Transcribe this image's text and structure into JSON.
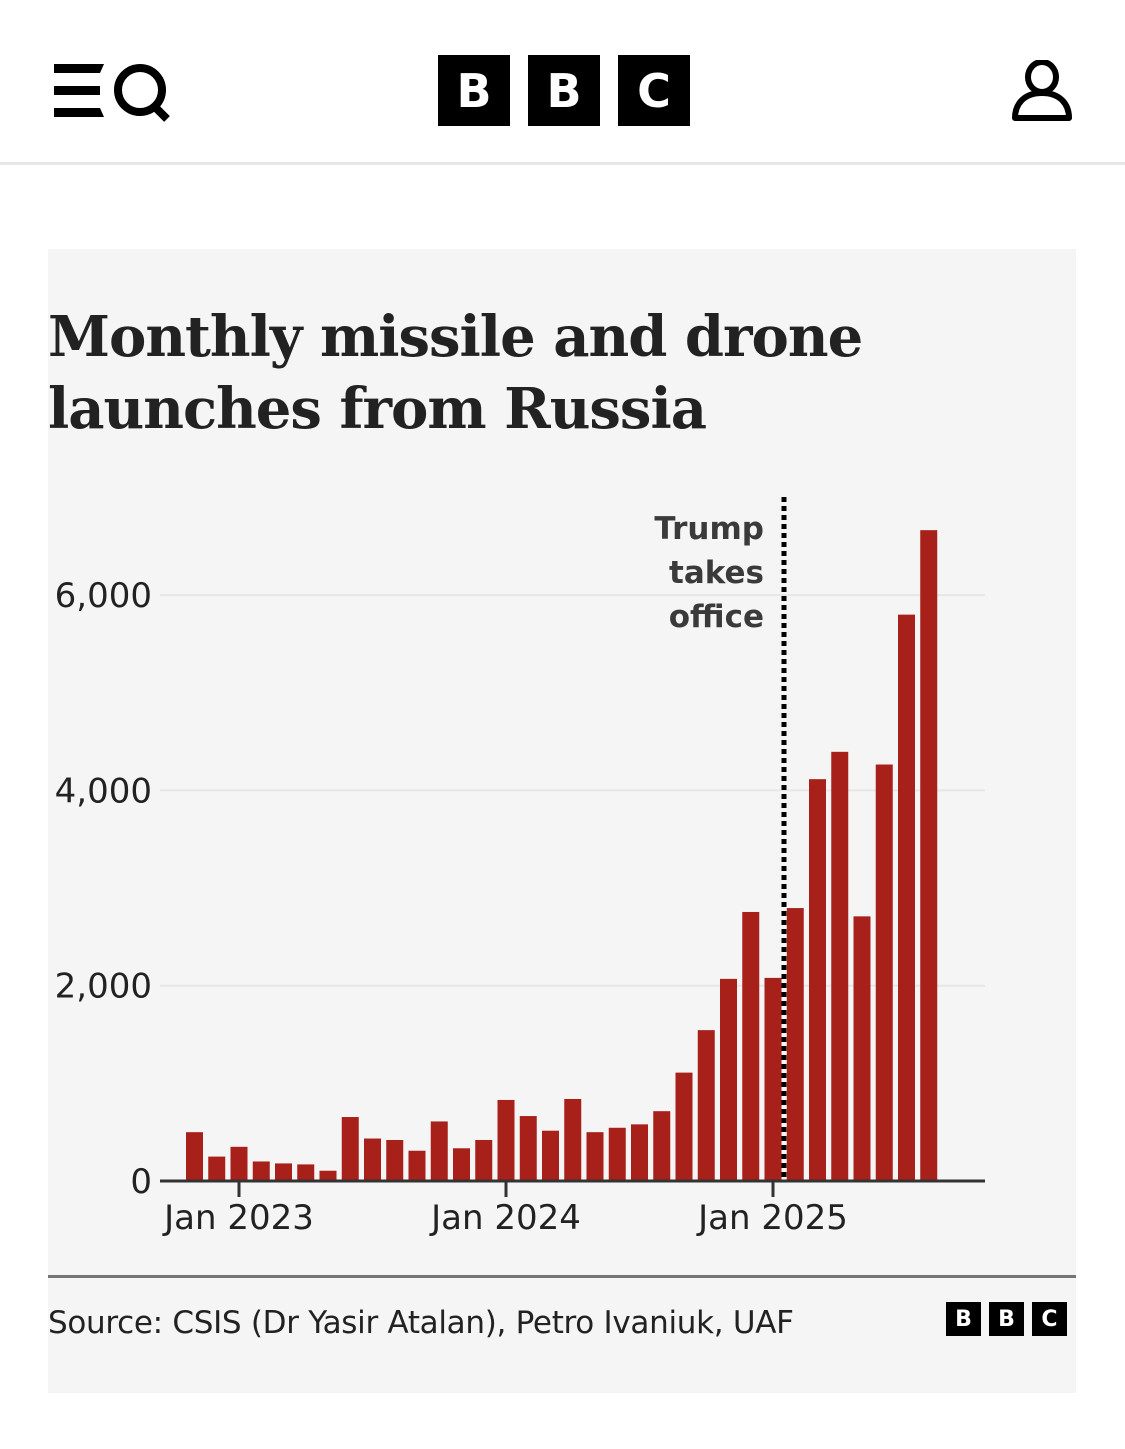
{
  "header": {
    "menu_icon": "menu-search-icon",
    "logo_letters": [
      "B",
      "B",
      "C"
    ],
    "account_icon": "user-icon"
  },
  "colors": {
    "bar": "#a8201a",
    "panel_background": "#f5f5f5",
    "gridline": "#e6e6e6",
    "axis": "#333333",
    "annotation_line": "#000000"
  },
  "chart_data": {
    "type": "bar",
    "title": "Monthly missile and drone launches from Russia",
    "xlabel": "",
    "ylabel": "",
    "ylim": [
      0,
      7000
    ],
    "yticks": [
      0,
      2000,
      4000,
      6000
    ],
    "ytick_labels": [
      "0",
      "2,000",
      "4,000",
      "6,000"
    ],
    "xtick_labels": [
      {
        "label": "Jan 2023",
        "category": "2023-01"
      },
      {
        "label": "Jan 2024",
        "category": "2024-01"
      },
      {
        "label": "Jan 2025",
        "category": "2025-01"
      }
    ],
    "grid": true,
    "categories": [
      "2022-11",
      "2022-12",
      "2023-01",
      "2023-02",
      "2023-03",
      "2023-04",
      "2023-05",
      "2023-06",
      "2023-07",
      "2023-08",
      "2023-09",
      "2023-10",
      "2023-11",
      "2023-12",
      "2024-01",
      "2024-02",
      "2024-03",
      "2024-04",
      "2024-05",
      "2024-06",
      "2024-07",
      "2024-08",
      "2024-09",
      "2024-10",
      "2024-11",
      "2024-12",
      "2025-01",
      "2025-02",
      "2025-03",
      "2025-04",
      "2025-05",
      "2025-06",
      "2025-07",
      "2025-08"
    ],
    "values": [
      500,
      250,
      350,
      200,
      180,
      170,
      105,
      655,
      435,
      420,
      310,
      610,
      335,
      420,
      830,
      665,
      515,
      840,
      500,
      545,
      580,
      715,
      1110,
      1545,
      2070,
      2755,
      2080,
      2795,
      4115,
      4395,
      2710,
      4265,
      5800,
      6665
    ],
    "annotations": [
      {
        "text": [
          "Trump",
          "takes",
          "office"
        ],
        "type": "vertical-dotted-line",
        "at": "between 2025-01 and 2025-02"
      }
    ],
    "source": "Source: CSIS (Dr Yasir Atalan), Petro Ivaniuk, UAF"
  },
  "footer": {
    "source_text": "Source: CSIS (Dr Yasir Atalan), Petro Ivaniuk, UAF",
    "logo_letters": [
      "B",
      "B",
      "C"
    ]
  }
}
